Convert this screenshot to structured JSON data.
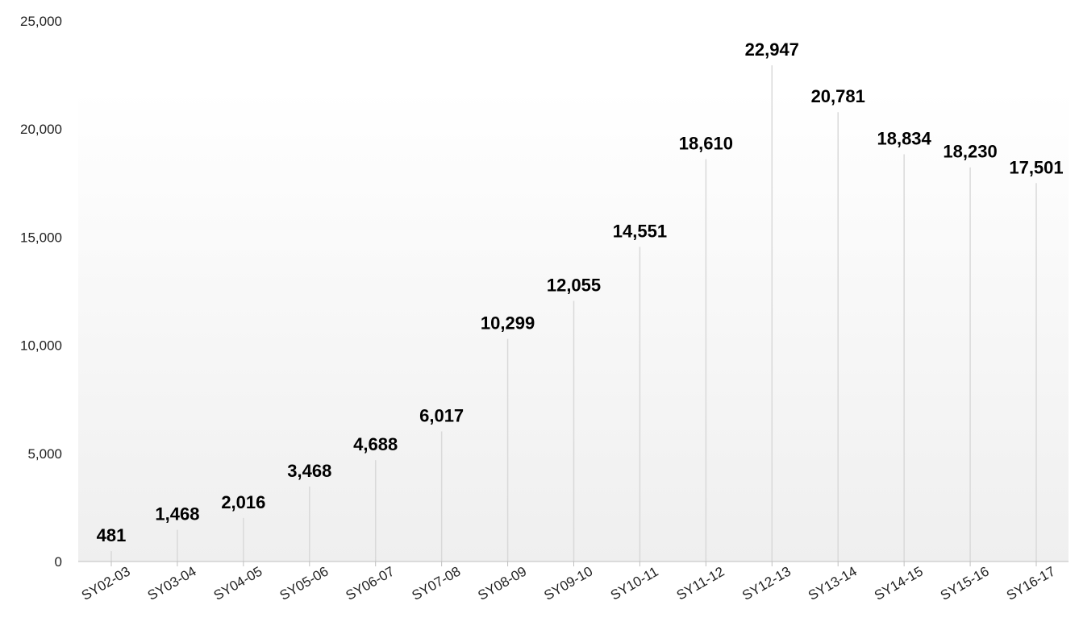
{
  "colors": {
    "background_top": "#ffffff",
    "background_bottom": "#efefef",
    "stem": "#d9d9d9",
    "axis": "#bfbfbf",
    "text": "#222222",
    "value_text": "#000000"
  },
  "chart_data": {
    "type": "bar",
    "style": "lollipop-stems",
    "title": "",
    "xlabel": "",
    "ylabel": "",
    "ylim": [
      0,
      25000
    ],
    "yticks": [
      0,
      5000,
      10000,
      15000,
      20000,
      25000
    ],
    "ytick_labels": [
      "0",
      "5,000",
      "10,000",
      "15,000",
      "20,000",
      "25,000"
    ],
    "grid": false,
    "legend": "none",
    "categories": [
      "SY02-03",
      "SY03-04",
      "SY04-05",
      "SY05-06",
      "SY06-07",
      "SY07-08",
      "SY08-09",
      "SY09-10",
      "SY10-11",
      "SY11-12",
      "SY12-13",
      "SY13-14",
      "SY14-15",
      "SY15-16",
      "SY16-17"
    ],
    "values": [
      481,
      1468,
      2016,
      3468,
      4688,
      6017,
      10299,
      12055,
      14551,
      18610,
      22947,
      20781,
      18834,
      18230,
      17501
    ],
    "value_labels": [
      "481",
      "1,468",
      "2,016",
      "3,468",
      "4,688",
      "6,017",
      "10,299",
      "12,055",
      "14,551",
      "18,610",
      "22,947",
      "20,781",
      "18,834",
      "18,230",
      "17,501"
    ]
  }
}
